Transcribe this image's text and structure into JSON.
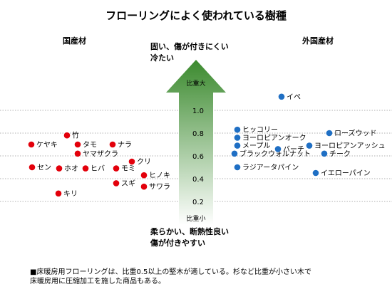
{
  "title": "フローリングによく使われている樹種",
  "domestic_heading": "国産材",
  "foreign_heading": "外国産材",
  "top_note": [
    "固い、傷が付きにくい",
    "冷たい"
  ],
  "bottom_note": [
    "柔らかい、断熱性良い",
    "傷が付きやすい"
  ],
  "footnote": [
    "■床暖房用フローリングは、比重0.5以上の堅木が適している。杉など比重が小さい木で",
    "床暖房用に圧縮加工を施した商品もある。"
  ],
  "colors": {
    "domestic": "#e3000b",
    "foreign": "#1f6fc4",
    "arrow_top": "#3b8a2e",
    "arrow_bottom": "#ffffff",
    "gridline": "#999999"
  },
  "chart_data": {
    "type": "scatter",
    "ylabel": "比重",
    "ylim": [
      0.0,
      1.3
    ],
    "yticks": [
      "1.0",
      "0.8",
      "0.6",
      "0.4",
      "0.2"
    ],
    "ytick_values": [
      1.0,
      0.8,
      0.6,
      0.4,
      0.2
    ],
    "axis_top_label": "比重大",
    "axis_bottom_label": "比重小",
    "series": [
      {
        "name": "国産材",
        "points": [
          {
            "label": "竹",
            "y": 0.78
          },
          {
            "label": "ケヤキ",
            "y": 0.7
          },
          {
            "label": "タモ",
            "y": 0.7
          },
          {
            "label": "ナラ",
            "y": 0.7
          },
          {
            "label": "ヤマザクラ",
            "y": 0.62
          },
          {
            "label": "クリ",
            "y": 0.55
          },
          {
            "label": "セン",
            "y": 0.5
          },
          {
            "label": "ホオ",
            "y": 0.49
          },
          {
            "label": "ヒバ",
            "y": 0.49
          },
          {
            "label": "モミ",
            "y": 0.49
          },
          {
            "label": "ヒノキ",
            "y": 0.43
          },
          {
            "label": "スギ",
            "y": 0.36
          },
          {
            "label": "サワラ",
            "y": 0.33
          },
          {
            "label": "キリ",
            "y": 0.27
          }
        ]
      },
      {
        "name": "外国産材",
        "points": [
          {
            "label": "イペ",
            "y": 1.12
          },
          {
            "label": "ヒッコリー",
            "y": 0.83
          },
          {
            "label": "ヨーロピアンオーク",
            "y": 0.76
          },
          {
            "label": "メープル",
            "y": 0.69
          },
          {
            "label": "バーチ",
            "y": 0.66
          },
          {
            "label": "ブラックウォルナット",
            "y": 0.62
          },
          {
            "label": "ラジアータパイン",
            "y": 0.5
          },
          {
            "label": "ローズウッド",
            "y": 0.8
          },
          {
            "label": "ヨーロピアンアッシュ",
            "y": 0.69
          },
          {
            "label": "チーク",
            "y": 0.62
          },
          {
            "label": "イエローパイン",
            "y": 0.45
          }
        ]
      }
    ]
  }
}
